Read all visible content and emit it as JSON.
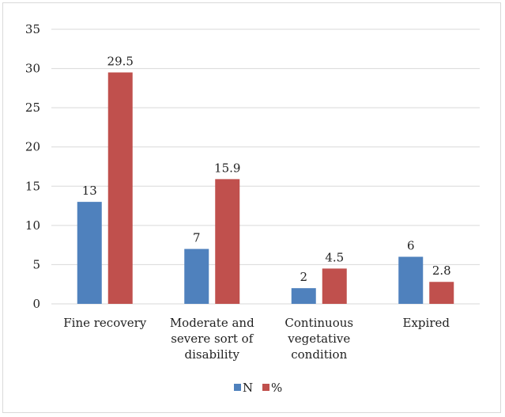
{
  "chart_data": {
    "type": "bar",
    "categories": [
      [
        "Fine recovery"
      ],
      [
        "Moderate and",
        "severe sort of",
        "disability"
      ],
      [
        "Continuous",
        "vegetative",
        "condition"
      ],
      [
        "Expired"
      ]
    ],
    "series": [
      {
        "name": "N",
        "values": [
          13,
          7,
          2,
          6
        ],
        "color": "#4f81bd"
      },
      {
        "name": "%",
        "values": [
          29.5,
          15.9,
          4.5,
          2.8
        ],
        "color": "#c0504d"
      }
    ],
    "ylim": [
      0,
      35
    ],
    "yticks": [
      0,
      5,
      10,
      15,
      20,
      25,
      30,
      35
    ],
    "grid": true,
    "legend": "bottom",
    "gridColor": "#d9d9d9"
  }
}
